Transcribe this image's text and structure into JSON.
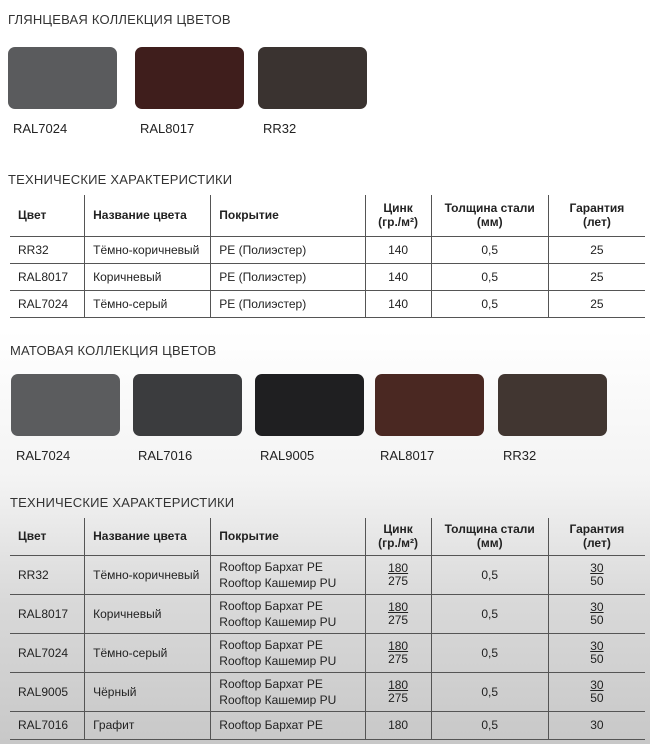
{
  "glossy": {
    "title": "ГЛЯНЦЕВАЯ КОЛЛЕКЦИЯ ЦВЕТОВ",
    "swatches": [
      {
        "label": "RAL7024",
        "color": "#5a5b5d"
      },
      {
        "label": "RAL8017",
        "color": "#3f1e1c"
      },
      {
        "label": "RR32",
        "color": "#3a3330"
      }
    ]
  },
  "tech1": {
    "title": "ТЕХНИЧЕСКИЕ ХАРАКТЕРИСТИКИ",
    "headers": [
      "Цвет",
      "Название цвета",
      "Покрытие",
      "Цинк (гр./м²)",
      "Толщина стали (мм)",
      "Гарантия (лет)"
    ],
    "rows": [
      [
        "RR32",
        "Тёмно-коричневый",
        "PE (Полиэстер)",
        "140",
        "0,5",
        "25"
      ],
      [
        "RAL8017",
        "Коричневый",
        "PE (Полиэстер)",
        "140",
        "0,5",
        "25"
      ],
      [
        "RAL7024",
        "Тёмно-серый",
        "PE (Полиэстер)",
        "140",
        "0,5",
        "25"
      ]
    ]
  },
  "matte": {
    "title": "МАТОВАЯ КОЛЛЕКЦИЯ ЦВЕТОВ",
    "swatches": [
      {
        "label": "RAL7024",
        "color": "#5b5c5e"
      },
      {
        "label": "RAL7016",
        "color": "#3b3c3e"
      },
      {
        "label": "RAL9005",
        "color": "#1f1f21"
      },
      {
        "label": "RAL8017",
        "color": "#4a2822"
      },
      {
        "label": "RR32",
        "color": "#413631"
      }
    ]
  },
  "tech2": {
    "title": "ТЕХНИЧЕСКИЕ ХАРАКТЕРИСТИКИ",
    "headers": [
      "Цвет",
      "Название цвета",
      "Покрытие",
      "Цинк (гр./м²)",
      "Толщина стали (мм)",
      "Гарантия (лет)"
    ],
    "rows": [
      {
        "code": "RR32",
        "name": "Тёмно-коричневый",
        "coating": [
          "Rooftop Бархат PE",
          "Rooftop Кашемир PU"
        ],
        "zinc": [
          "180",
          "275"
        ],
        "steel": "0,5",
        "warranty": [
          "30",
          "50"
        ]
      },
      {
        "code": "RAL8017",
        "name": "Коричневый",
        "coating": [
          "Rooftop Бархат PE",
          "Rooftop Кашемир PU"
        ],
        "zinc": [
          "180",
          "275"
        ],
        "steel": "0,5",
        "warranty": [
          "30",
          "50"
        ]
      },
      {
        "code": "RAL7024",
        "name": "Тёмно-серый",
        "coating": [
          "Rooftop Бархат PE",
          "Rooftop Кашемир PU"
        ],
        "zinc": [
          "180",
          "275"
        ],
        "steel": "0,5",
        "warranty": [
          "30",
          "50"
        ]
      },
      {
        "code": "RAL9005",
        "name": "Чёрный",
        "coating": [
          "Rooftop Бархат PE",
          "Rooftop Кашемир PU"
        ],
        "zinc": [
          "180",
          "275"
        ],
        "steel": "0,5",
        "warranty": [
          "30",
          "50"
        ]
      },
      {
        "code": "RAL7016",
        "name": "Графит",
        "coating": [
          "Rooftop Бархат PE"
        ],
        "zinc": [
          "180"
        ],
        "steel": "0,5",
        "warranty": [
          "30"
        ]
      }
    ]
  }
}
